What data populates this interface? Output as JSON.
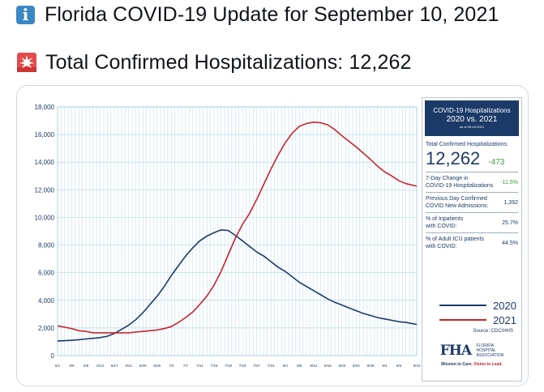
{
  "tweet": {
    "line1": "Florida COVID-19 Update for September 10, 2021",
    "line2": "Total Confirmed Hospitalizations: 12,262",
    "line1_icon": "information-emoji",
    "line2_icon": "police-light-emoji"
  },
  "panel": {
    "title": "COVID-19 Hospitalizations",
    "subtitle": "2020 vs. 2021",
    "as_of": "as of 09-10-2021",
    "total_label": "Total Confirmed Hospitalizations:",
    "total_value": "12,262",
    "total_delta": "-473",
    "change_label_1": "7-Day Change in",
    "change_label_2": "COVID-19 Hospitalizations",
    "change_value": "-11.5%",
    "prev_label_1": "Previous Day Confirmed",
    "prev_label_2": "COVID New Admissions:",
    "prev_value": "1,392",
    "inpatients_label_1": "% of Inpatients",
    "inpatients_label_2": "with COVID:",
    "inpatients_value": "25.7%",
    "icu_label_1": "% of Adult ICU patients",
    "icu_label_2": "with COVID:",
    "icu_value": "44.5%",
    "legend_2020": "2020",
    "legend_2021": "2021",
    "source": "Source: CDC/HHS",
    "logo_text": "FHA",
    "logo_name_1": "FLORIDA",
    "logo_name_2": "HOSPITAL",
    "logo_name_3": "ASSOCIATION",
    "mission_1": "Mission to Care.",
    "mission_2": "Vision to Lead."
  },
  "colors": {
    "series_2020": "#1c3a67",
    "series_2021": "#c8242b",
    "grid": "#b5d8ee",
    "accent_green": "#3c9a3c"
  },
  "chart_data": {
    "type": "line",
    "title": "",
    "xlabel": "",
    "ylabel": "",
    "ylim": [
      0,
      18000
    ],
    "yticks": [
      0,
      2000,
      4000,
      6000,
      8000,
      10000,
      12000,
      14000,
      16000,
      18000
    ],
    "ytick_labels": [
      "0",
      "2,000",
      "4,000",
      "6,000",
      "8,000",
      "10,000",
      "12,000",
      "14,000",
      "16,000",
      "18,000"
    ],
    "xticks": [
      "6/1",
      "6/5",
      "6/9",
      "6/13",
      "6/17",
      "6/21",
      "6/25",
      "6/29",
      "7/3",
      "7/7",
      "7/11",
      "7/15",
      "7/19",
      "7/23",
      "7/27",
      "7/31",
      "8/4",
      "8/8",
      "8/12",
      "8/16",
      "8/20",
      "8/24",
      "8/28",
      "9/1",
      "9/5",
      "9/10"
    ],
    "x_start": "6/1",
    "x_end": "9/10",
    "grid": true,
    "legend": "right",
    "series": [
      {
        "name": "2020",
        "x": [
          0,
          2,
          4,
          6,
          8,
          10,
          12,
          14,
          16,
          18,
          20,
          22,
          24,
          26,
          28,
          30,
          32,
          34,
          36,
          38,
          40,
          42,
          44,
          46,
          48,
          50,
          52,
          54,
          56,
          58,
          60,
          62,
          64,
          66,
          68,
          70,
          72,
          74,
          76,
          78,
          80,
          82,
          84,
          86,
          88,
          90,
          92,
          94,
          96,
          98,
          101
        ],
        "values": [
          1050,
          1080,
          1100,
          1150,
          1200,
          1250,
          1300,
          1400,
          1600,
          1900,
          2200,
          2600,
          3100,
          3700,
          4300,
          5000,
          5800,
          6500,
          7200,
          7800,
          8300,
          8650,
          8900,
          9100,
          9050,
          8700,
          8300,
          7900,
          7500,
          7200,
          6800,
          6400,
          6100,
          5700,
          5300,
          5000,
          4700,
          4400,
          4100,
          3850,
          3650,
          3450,
          3250,
          3050,
          2900,
          2750,
          2650,
          2550,
          2450,
          2400,
          2250
        ]
      },
      {
        "name": "2021",
        "x": [
          0,
          2,
          4,
          6,
          8,
          10,
          12,
          14,
          16,
          18,
          20,
          22,
          24,
          26,
          28,
          30,
          32,
          34,
          36,
          38,
          40,
          42,
          44,
          46,
          48,
          50,
          52,
          54,
          56,
          58,
          60,
          62,
          64,
          66,
          68,
          70,
          72,
          74,
          76,
          78,
          80,
          82,
          84,
          86,
          88,
          90,
          92,
          94,
          96,
          98,
          101
        ],
        "values": [
          2150,
          2050,
          1950,
          1800,
          1750,
          1650,
          1650,
          1650,
          1650,
          1650,
          1650,
          1700,
          1750,
          1800,
          1850,
          1950,
          2100,
          2400,
          2750,
          3150,
          3700,
          4300,
          5100,
          6100,
          7300,
          8500,
          9500,
          10300,
          11300,
          12400,
          13500,
          14500,
          15400,
          16100,
          16600,
          16800,
          16900,
          16850,
          16700,
          16350,
          15900,
          15500,
          15100,
          14650,
          14200,
          13700,
          13300,
          13000,
          12650,
          12450,
          12262
        ]
      }
    ]
  }
}
